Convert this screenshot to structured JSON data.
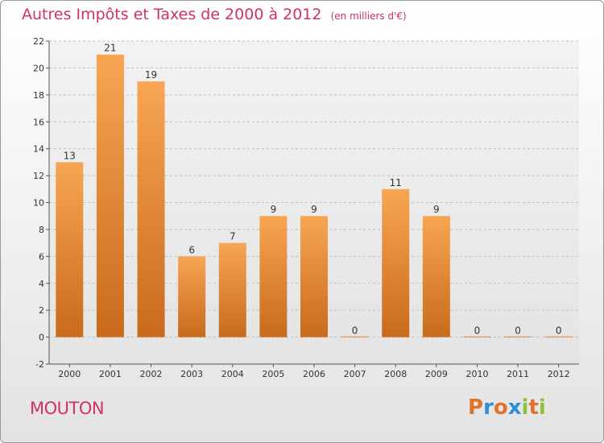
{
  "chart_data": {
    "type": "bar",
    "title": "Autres Impôts et Taxes de 2000 à 2012",
    "subtitle": "(en milliers d'€)",
    "categories": [
      "2000",
      "2001",
      "2002",
      "2003",
      "2004",
      "2005",
      "2006",
      "2007",
      "2008",
      "2009",
      "2010",
      "2011",
      "2012"
    ],
    "values": [
      13,
      21,
      19,
      6,
      7,
      9,
      9,
      0,
      11,
      9,
      0,
      0,
      0
    ],
    "data_labels": [
      "13",
      "21",
      "19",
      "6",
      "7",
      "9",
      "9",
      "0",
      "11",
      "9",
      "0",
      "0",
      "0"
    ],
    "ylim": [
      -2,
      22
    ],
    "yticks": [
      -2,
      0,
      2,
      4,
      6,
      8,
      10,
      12,
      14,
      16,
      18,
      20,
      22
    ],
    "grid": true,
    "bar_color_top": "#f7a653",
    "bar_color_bottom": "#c96a1c"
  },
  "place_name": "MOUTON",
  "logo": {
    "text": "Proxiti",
    "letters": [
      "P",
      "r",
      "o",
      "x",
      "i",
      "t",
      "i"
    ],
    "colors": [
      "#e0732a",
      "#2e8fd6",
      "#e0732a",
      "#2e8fd6",
      "#8ac23a",
      "#e0732a",
      "#8ac23a"
    ]
  }
}
